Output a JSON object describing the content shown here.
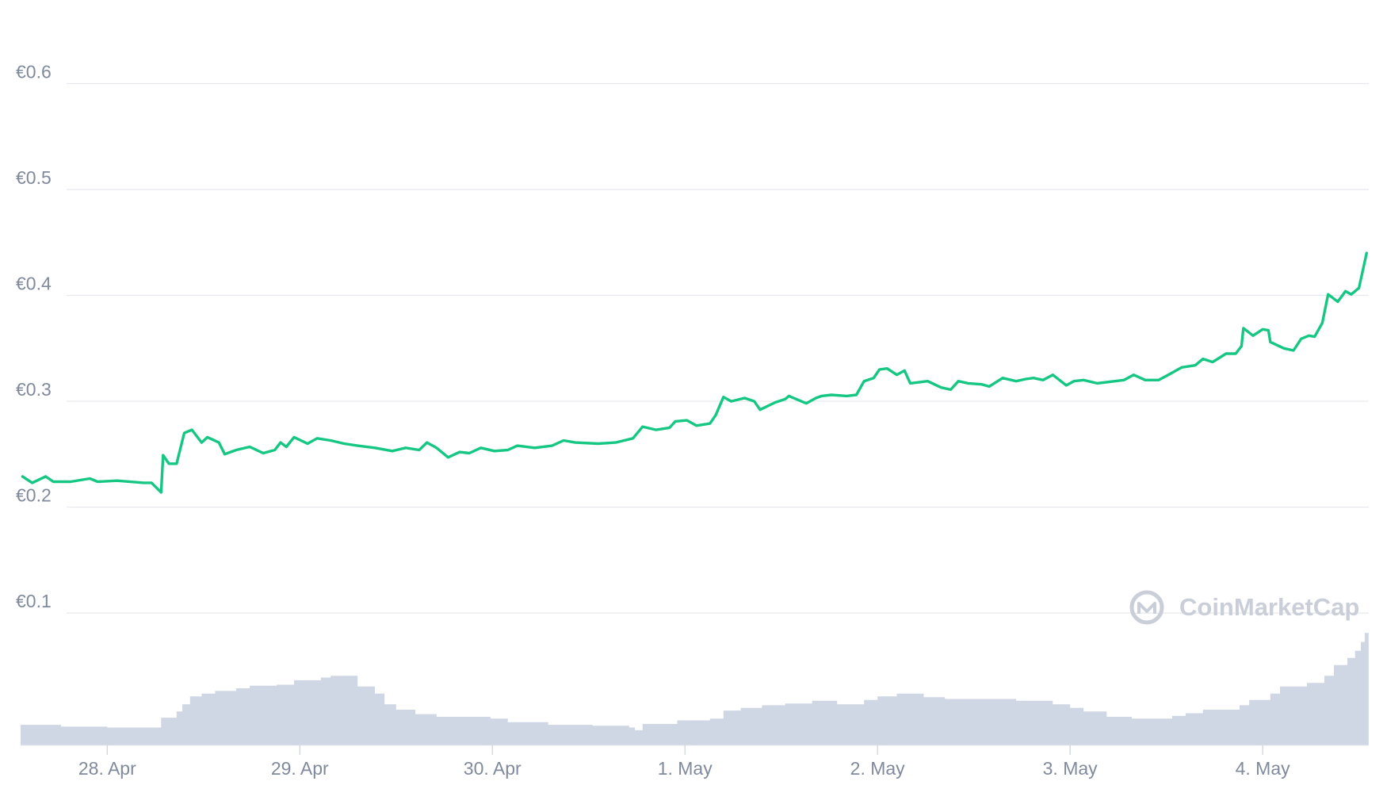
{
  "chart_data": {
    "type": "line",
    "watermark": "CoinMarketCap",
    "grid": true,
    "xlim": [
      27.546,
      34.551
    ],
    "xticks": [
      {
        "value": 28,
        "label": "28. Apr"
      },
      {
        "value": 29,
        "label": "29. Apr"
      },
      {
        "value": 30,
        "label": "30. Apr"
      },
      {
        "value": 31,
        "label": "1. May"
      },
      {
        "value": 32,
        "label": "2. May"
      },
      {
        "value": 33,
        "label": "3. May"
      },
      {
        "value": 34,
        "label": "4. May"
      }
    ],
    "ylim": [
      -0.025,
      0.679
    ],
    "yticks": [
      {
        "value": 0.1,
        "label": "€0.1"
      },
      {
        "value": 0.2,
        "label": "€0.2"
      },
      {
        "value": 0.3,
        "label": "€0.3"
      },
      {
        "value": 0.4,
        "label": "€0.4"
      },
      {
        "value": 0.5,
        "label": "€0.5"
      },
      {
        "value": 0.6,
        "label": "€0.6"
      }
    ],
    "y2lim": [
      0,
      836
    ],
    "series": [
      {
        "type": "area",
        "axis": "y2",
        "color": "#cfd6e4",
        "x": [
          27.55,
          27.75,
          27.76,
          28.0,
          28.28,
          28.36,
          28.39,
          28.43,
          28.49,
          28.56,
          28.67,
          28.74,
          28.88,
          28.97,
          29.11,
          29.16,
          29.3,
          29.39,
          29.44,
          29.5,
          29.6,
          29.71,
          29.99,
          30.08,
          30.29,
          30.52,
          30.71,
          30.74,
          30.78,
          30.96,
          31.13,
          31.2,
          31.29,
          31.4,
          31.52,
          31.66,
          31.79,
          31.93,
          32.0,
          32.1,
          32.24,
          32.35,
          32.72,
          32.91,
          33.0,
          33.07,
          33.19,
          33.32,
          33.46,
          33.53,
          33.6,
          33.69,
          33.88,
          33.93,
          34.04,
          34.09,
          34.23,
          34.32,
          34.37,
          34.44,
          34.48,
          34.51,
          34.53,
          34.55
        ],
        "values": [
          23,
          23,
          21,
          20,
          31,
          38,
          46,
          55,
          58,
          61,
          64,
          67,
          68,
          73,
          76,
          78,
          66,
          58,
          46,
          40,
          35,
          32,
          30,
          26,
          23,
          22,
          20,
          17,
          24,
          28,
          30,
          39,
          42,
          45,
          47,
          50,
          46,
          51,
          55,
          58,
          54,
          52,
          50,
          46,
          42,
          38,
          32,
          30,
          30,
          33,
          36,
          40,
          45,
          51,
          58,
          66,
          70,
          78,
          90,
          98,
          106,
          116,
          126,
          126
        ]
      },
      {
        "type": "line",
        "color": "#16c784",
        "x": [
          27.56,
          27.61,
          27.68,
          27.72,
          27.81,
          27.91,
          27.95,
          28.05,
          28.19,
          28.23,
          28.28,
          28.29,
          28.32,
          28.36,
          28.4,
          28.44,
          28.49,
          28.52,
          28.58,
          28.61,
          28.64,
          28.67,
          28.74,
          28.81,
          28.87,
          28.9,
          28.93,
          28.97,
          29.04,
          29.09,
          29.16,
          29.23,
          29.3,
          29.39,
          29.48,
          29.55,
          29.62,
          29.66,
          29.71,
          29.77,
          29.83,
          29.88,
          29.94,
          30.01,
          30.08,
          30.13,
          30.22,
          30.31,
          30.37,
          30.43,
          30.55,
          30.64,
          30.73,
          30.78,
          30.85,
          30.92,
          30.95,
          31.01,
          31.06,
          31.13,
          31.16,
          31.2,
          31.24,
          31.31,
          31.36,
          31.39,
          31.47,
          31.52,
          31.54,
          31.63,
          31.68,
          31.71,
          31.76,
          31.84,
          31.89,
          31.93,
          31.98,
          32.01,
          32.05,
          32.1,
          32.14,
          32.17,
          32.26,
          32.33,
          32.38,
          32.42,
          32.47,
          32.54,
          32.58,
          32.65,
          32.72,
          32.77,
          32.81,
          32.86,
          32.91,
          32.98,
          33.02,
          33.07,
          33.14,
          33.28,
          33.33,
          33.39,
          33.46,
          33.51,
          33.58,
          33.65,
          33.69,
          33.74,
          33.81,
          33.86,
          33.89,
          33.9,
          33.95,
          34.0,
          34.03,
          34.04,
          34.11,
          34.16,
          34.2,
          34.24,
          34.27,
          34.31,
          34.34,
          34.39,
          34.43,
          34.46,
          34.5,
          34.54
        ],
        "values": [
          0.229,
          0.223,
          0.229,
          0.224,
          0.224,
          0.227,
          0.224,
          0.225,
          0.223,
          0.223,
          0.214,
          0.249,
          0.241,
          0.241,
          0.27,
          0.273,
          0.261,
          0.266,
          0.261,
          0.25,
          0.252,
          0.254,
          0.257,
          0.251,
          0.254,
          0.261,
          0.257,
          0.266,
          0.26,
          0.265,
          0.263,
          0.26,
          0.258,
          0.256,
          0.253,
          0.256,
          0.254,
          0.261,
          0.256,
          0.247,
          0.252,
          0.251,
          0.256,
          0.253,
          0.254,
          0.258,
          0.256,
          0.258,
          0.263,
          0.261,
          0.26,
          0.261,
          0.265,
          0.276,
          0.273,
          0.275,
          0.281,
          0.282,
          0.277,
          0.279,
          0.287,
          0.304,
          0.3,
          0.303,
          0.3,
          0.292,
          0.299,
          0.302,
          0.305,
          0.298,
          0.303,
          0.305,
          0.306,
          0.305,
          0.306,
          0.319,
          0.322,
          0.33,
          0.331,
          0.325,
          0.329,
          0.317,
          0.319,
          0.313,
          0.311,
          0.319,
          0.317,
          0.316,
          0.314,
          0.322,
          0.319,
          0.321,
          0.322,
          0.32,
          0.325,
          0.315,
          0.319,
          0.32,
          0.317,
          0.32,
          0.325,
          0.32,
          0.32,
          0.325,
          0.332,
          0.334,
          0.34,
          0.337,
          0.345,
          0.345,
          0.352,
          0.369,
          0.362,
          0.368,
          0.367,
          0.356,
          0.35,
          0.348,
          0.359,
          0.362,
          0.361,
          0.374,
          0.401,
          0.394,
          0.404,
          0.401,
          0.407,
          0.44
        ]
      }
    ]
  }
}
